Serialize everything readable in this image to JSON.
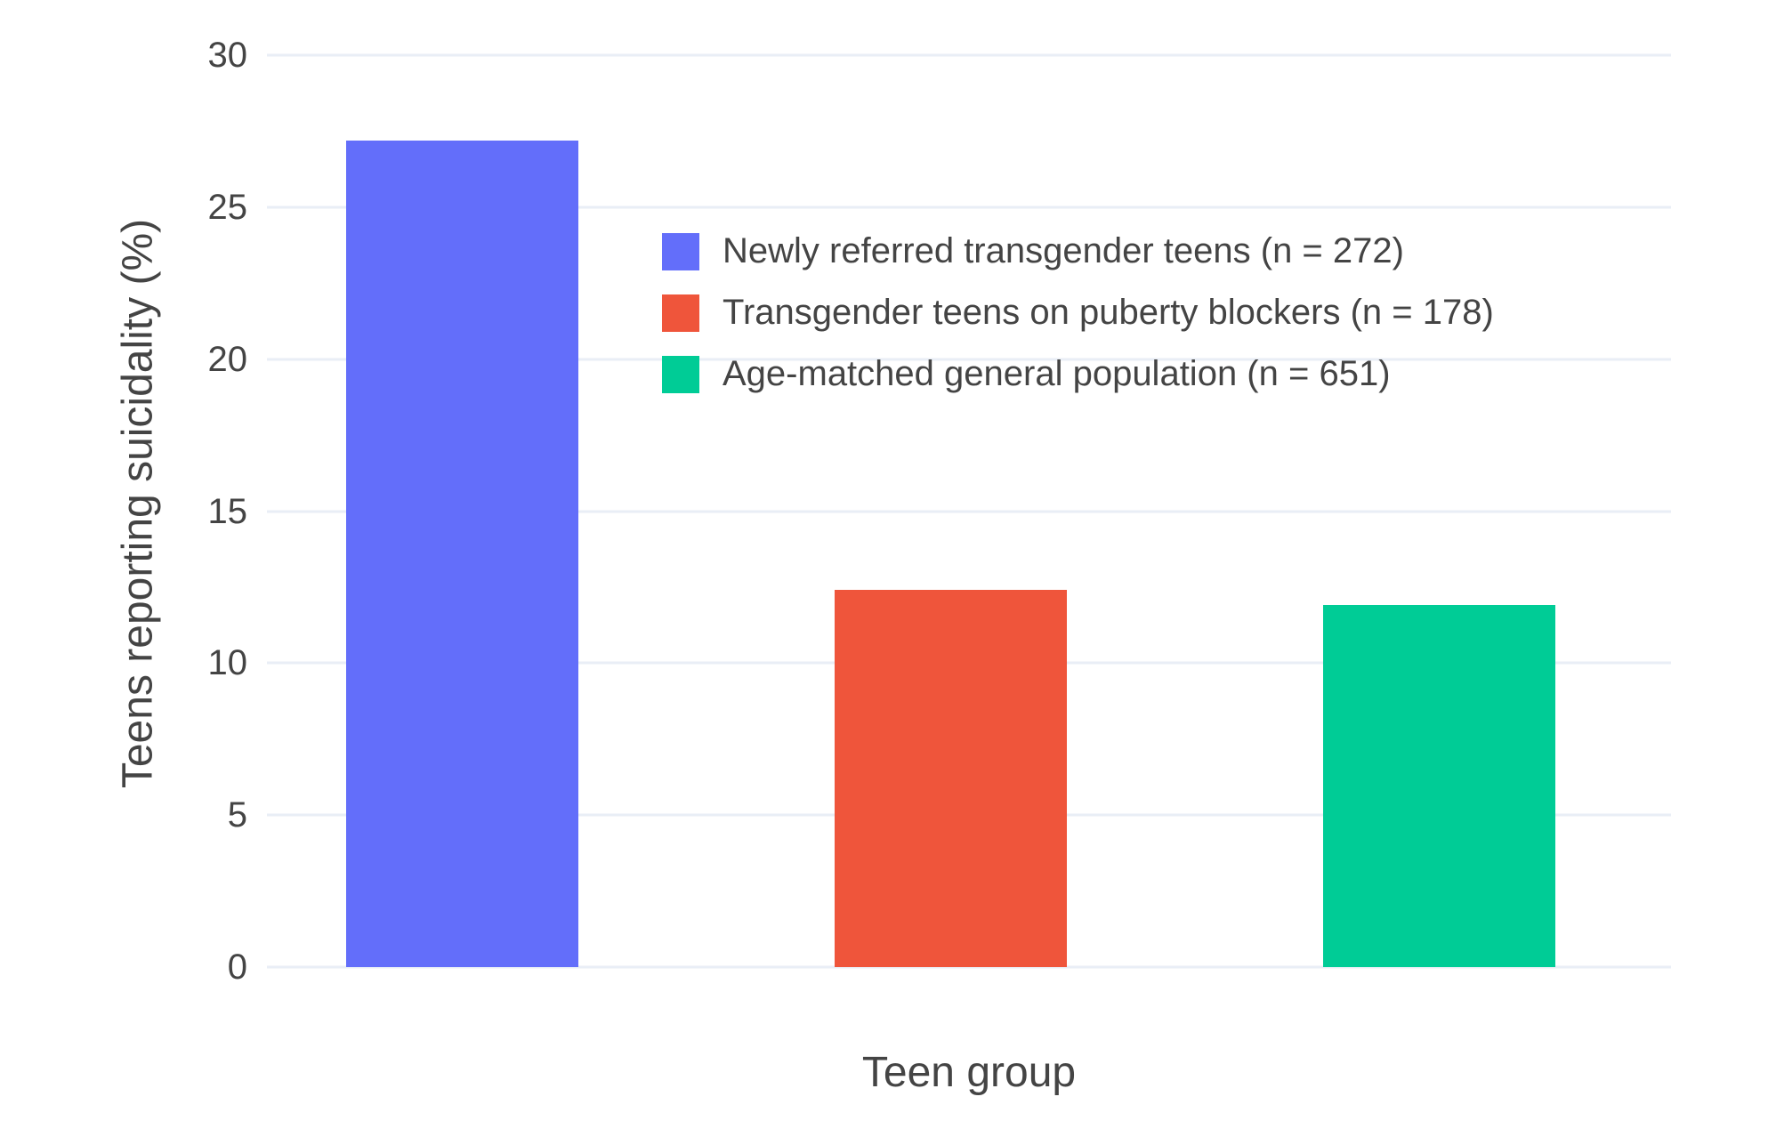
{
  "chart_data": {
    "type": "bar",
    "title": "",
    "xlabel": "Teen group",
    "ylabel": "Teens reporting suicidality (%)",
    "series": [
      {
        "name": "Newly referred transgender teens (n = 272)",
        "value": 27.2,
        "color": "#636EFA"
      },
      {
        "name": "Transgender teens on puberty blockers (n = 178)",
        "value": 12.4,
        "color": "#EF553B"
      },
      {
        "name": "Age-matched general population (n = 651)",
        "value": 11.9,
        "color": "#00CC96"
      }
    ],
    "ylim": [
      0,
      30.5
    ],
    "yticks": [
      0,
      5,
      10,
      15,
      20,
      25,
      30
    ],
    "grid": true,
    "grid_color": "#E9EEF6",
    "background_color": "#FFFFFF",
    "text_color": "#444444",
    "legend_position": "inside top-center",
    "layout_hints": {
      "bar_center_fractions": [
        0.1388,
        0.487,
        0.8349
      ],
      "bar_width_fraction": 0.1654
    }
  }
}
